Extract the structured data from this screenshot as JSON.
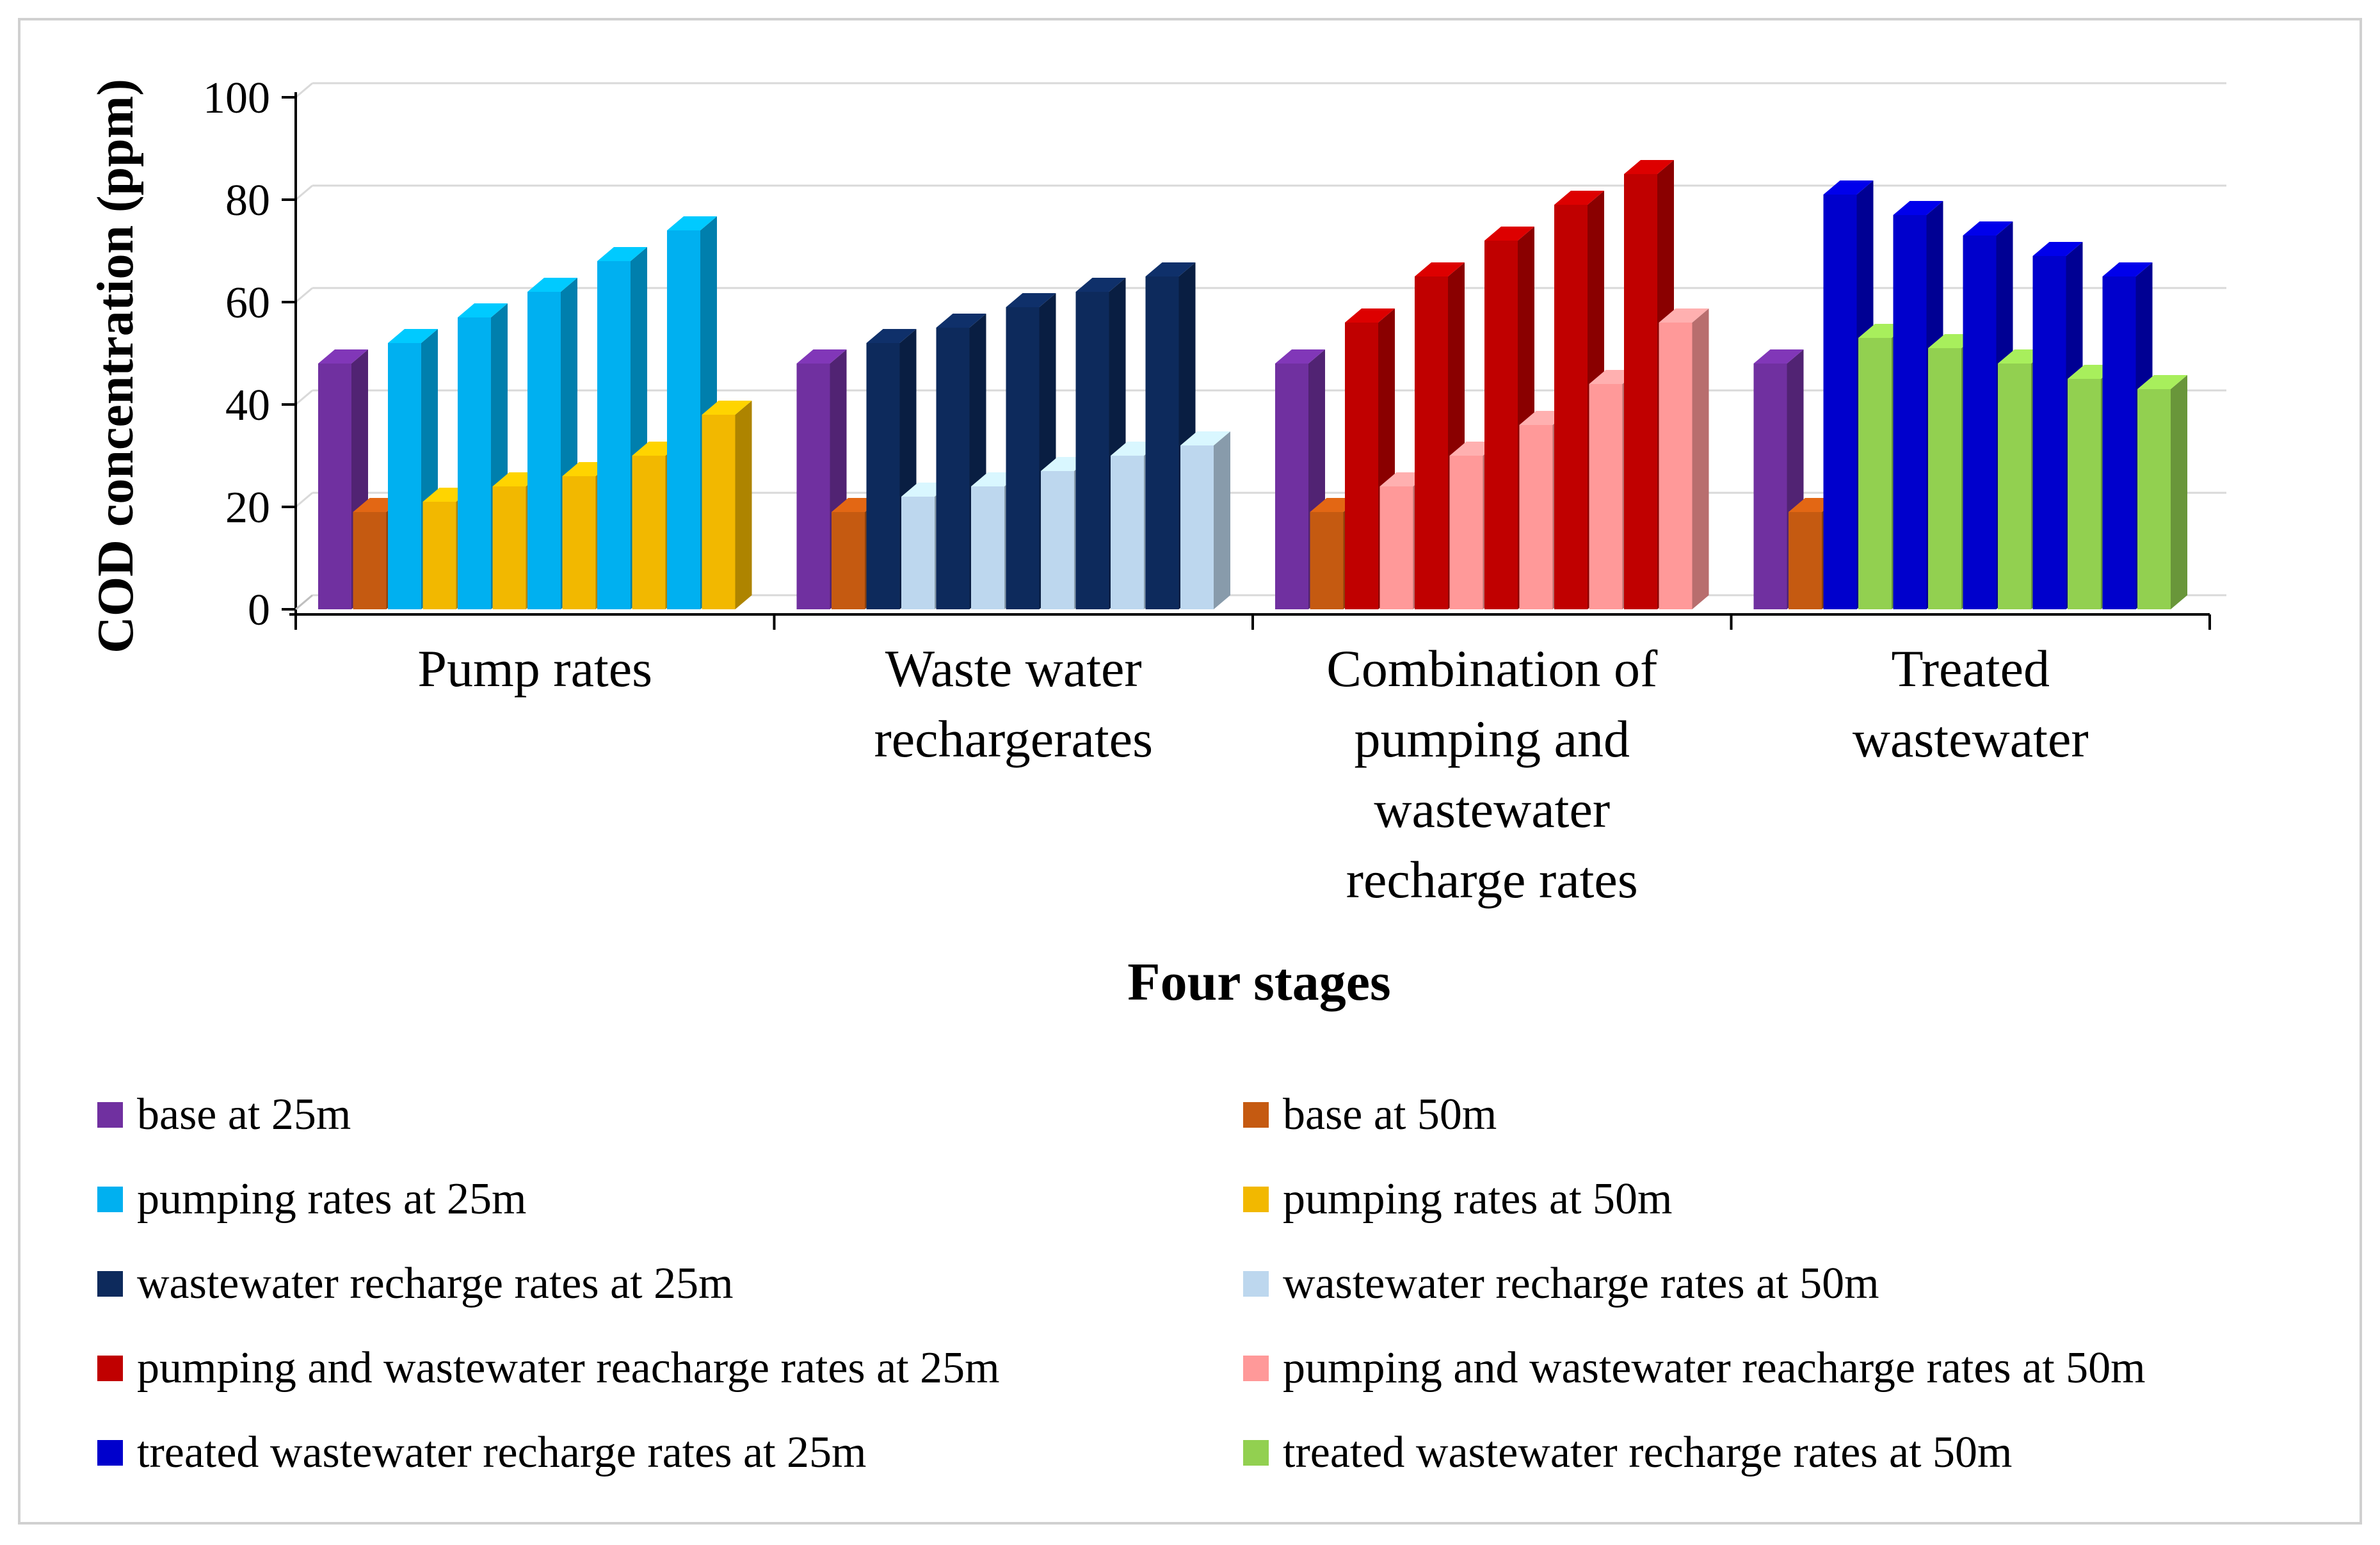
{
  "chart_data": {
    "type": "bar",
    "xlabel": "Four stages",
    "ylabel": "COD concentration (ppm)",
    "ylim": [
      0,
      100
    ],
    "yticks": [
      0,
      20,
      40,
      60,
      80,
      100
    ],
    "grid": true,
    "legend_position": "bottom",
    "groups": [
      {
        "category": "Pump rates",
        "bars": [
          {
            "series": "base at 25m",
            "value": 48
          },
          {
            "series": "base at 50m",
            "value": 19
          },
          {
            "series": "pumping rates at 25m",
            "value": 52
          },
          {
            "series": "pumping rates at 50m",
            "value": 21
          },
          {
            "series": "pumping rates at 25m",
            "value": 57
          },
          {
            "series": "pumping rates at 50m",
            "value": 24
          },
          {
            "series": "pumping rates at 25m",
            "value": 62
          },
          {
            "series": "pumping rates at 50m",
            "value": 26
          },
          {
            "series": "pumping rates at 25m",
            "value": 68
          },
          {
            "series": "pumping rates at 50m",
            "value": 30
          },
          {
            "series": "pumping rates at 25m",
            "value": 74
          },
          {
            "series": "pumping rates at 50m",
            "value": 38
          }
        ]
      },
      {
        "category": "Waste water rechargerates",
        "bars": [
          {
            "series": "base at 25m",
            "value": 48
          },
          {
            "series": "base at 50m",
            "value": 19
          },
          {
            "series": "wastewater recharge rates at 25m",
            "value": 52
          },
          {
            "series": "wastewater recharge rates at 50m",
            "value": 22
          },
          {
            "series": "wastewater recharge rates at 25m",
            "value": 55
          },
          {
            "series": "wastewater recharge rates at 50m",
            "value": 24
          },
          {
            "series": "wastewater recharge rates at 25m",
            "value": 59
          },
          {
            "series": "wastewater recharge rates at 50m",
            "value": 27
          },
          {
            "series": "wastewater recharge rates at 25m",
            "value": 62
          },
          {
            "series": "wastewater recharge rates at 50m",
            "value": 30
          },
          {
            "series": "wastewater recharge rates at 25m",
            "value": 65
          },
          {
            "series": "wastewater recharge rates at 50m",
            "value": 32
          }
        ]
      },
      {
        "category": "Combination of pumping and wastewater recharge rates",
        "bars": [
          {
            "series": "base at 25m",
            "value": 48
          },
          {
            "series": "base at 50m",
            "value": 19
          },
          {
            "series": "pumping and wastewater reacharge rates at 25m",
            "value": 56
          },
          {
            "series": "pumping and wastewater reacharge rates at 50m",
            "value": 24
          },
          {
            "series": "pumping and wastewater reacharge rates at 25m",
            "value": 65
          },
          {
            "series": "pumping and wastewater reacharge rates at 50m",
            "value": 30
          },
          {
            "series": "pumping and wastewater reacharge rates at 25m",
            "value": 72
          },
          {
            "series": "pumping and wastewater reacharge rates at 50m",
            "value": 36
          },
          {
            "series": "pumping and wastewater reacharge rates at 25m",
            "value": 79
          },
          {
            "series": "pumping and wastewater reacharge rates at 50m",
            "value": 44
          },
          {
            "series": "pumping and wastewater reacharge rates at 25m",
            "value": 85
          },
          {
            "series": "pumping and wastewater reacharge rates at 50m",
            "value": 56
          }
        ]
      },
      {
        "category": "Treated wastewater",
        "bars": [
          {
            "series": "base at 25m",
            "value": 48
          },
          {
            "series": "base at 50m",
            "value": 19
          },
          {
            "series": "treated wastewater recharge rates at 25m",
            "value": 81
          },
          {
            "series": "treated wastewater recharge rates at 50m",
            "value": 53
          },
          {
            "series": "treated wastewater recharge rates at 25m",
            "value": 77
          },
          {
            "series": "treated wastewater recharge rates at 50m",
            "value": 51
          },
          {
            "series": "treated wastewater recharge rates at 25m",
            "value": 73
          },
          {
            "series": "treated wastewater recharge rates at 50m",
            "value": 48
          },
          {
            "series": "treated wastewater recharge rates at 25m",
            "value": 69
          },
          {
            "series": "treated wastewater recharge rates at 50m",
            "value": 45
          },
          {
            "series": "treated wastewater recharge rates at 25m",
            "value": 65
          },
          {
            "series": "treated wastewater recharge rates at 50m",
            "value": 43
          }
        ]
      }
    ],
    "category_label_lines": [
      [
        "Pump rates"
      ],
      [
        "Waste water",
        "rechargerates"
      ],
      [
        "Combination of",
        "pumping and",
        "wastewater",
        "recharge rates"
      ],
      [
        "Treated",
        "wastewater"
      ]
    ],
    "legend": [
      {
        "name": "base at 25m",
        "color": "#7030A0"
      },
      {
        "name": "base at 50m",
        "color": "#C55A11"
      },
      {
        "name": "pumping rates at 25m",
        "color": "#00B0F0"
      },
      {
        "name": "pumping rates at 50m",
        "color": "#F2B800"
      },
      {
        "name": "wastewater recharge rates at 25m",
        "color": "#0D2A5C"
      },
      {
        "name": "wastewater recharge rates at 50m",
        "color": "#BDD7EE"
      },
      {
        "name": "pumping and wastewater reacharge rates at 25m",
        "color": "#C00000"
      },
      {
        "name": "pumping and wastewater reacharge rates at 50m",
        "color": "#FF9999"
      },
      {
        "name": "treated wastewater recharge rates at 25m",
        "color": "#0000CC"
      },
      {
        "name": "treated wastewater recharge rates at 50m",
        "color": "#92D050"
      }
    ]
  }
}
